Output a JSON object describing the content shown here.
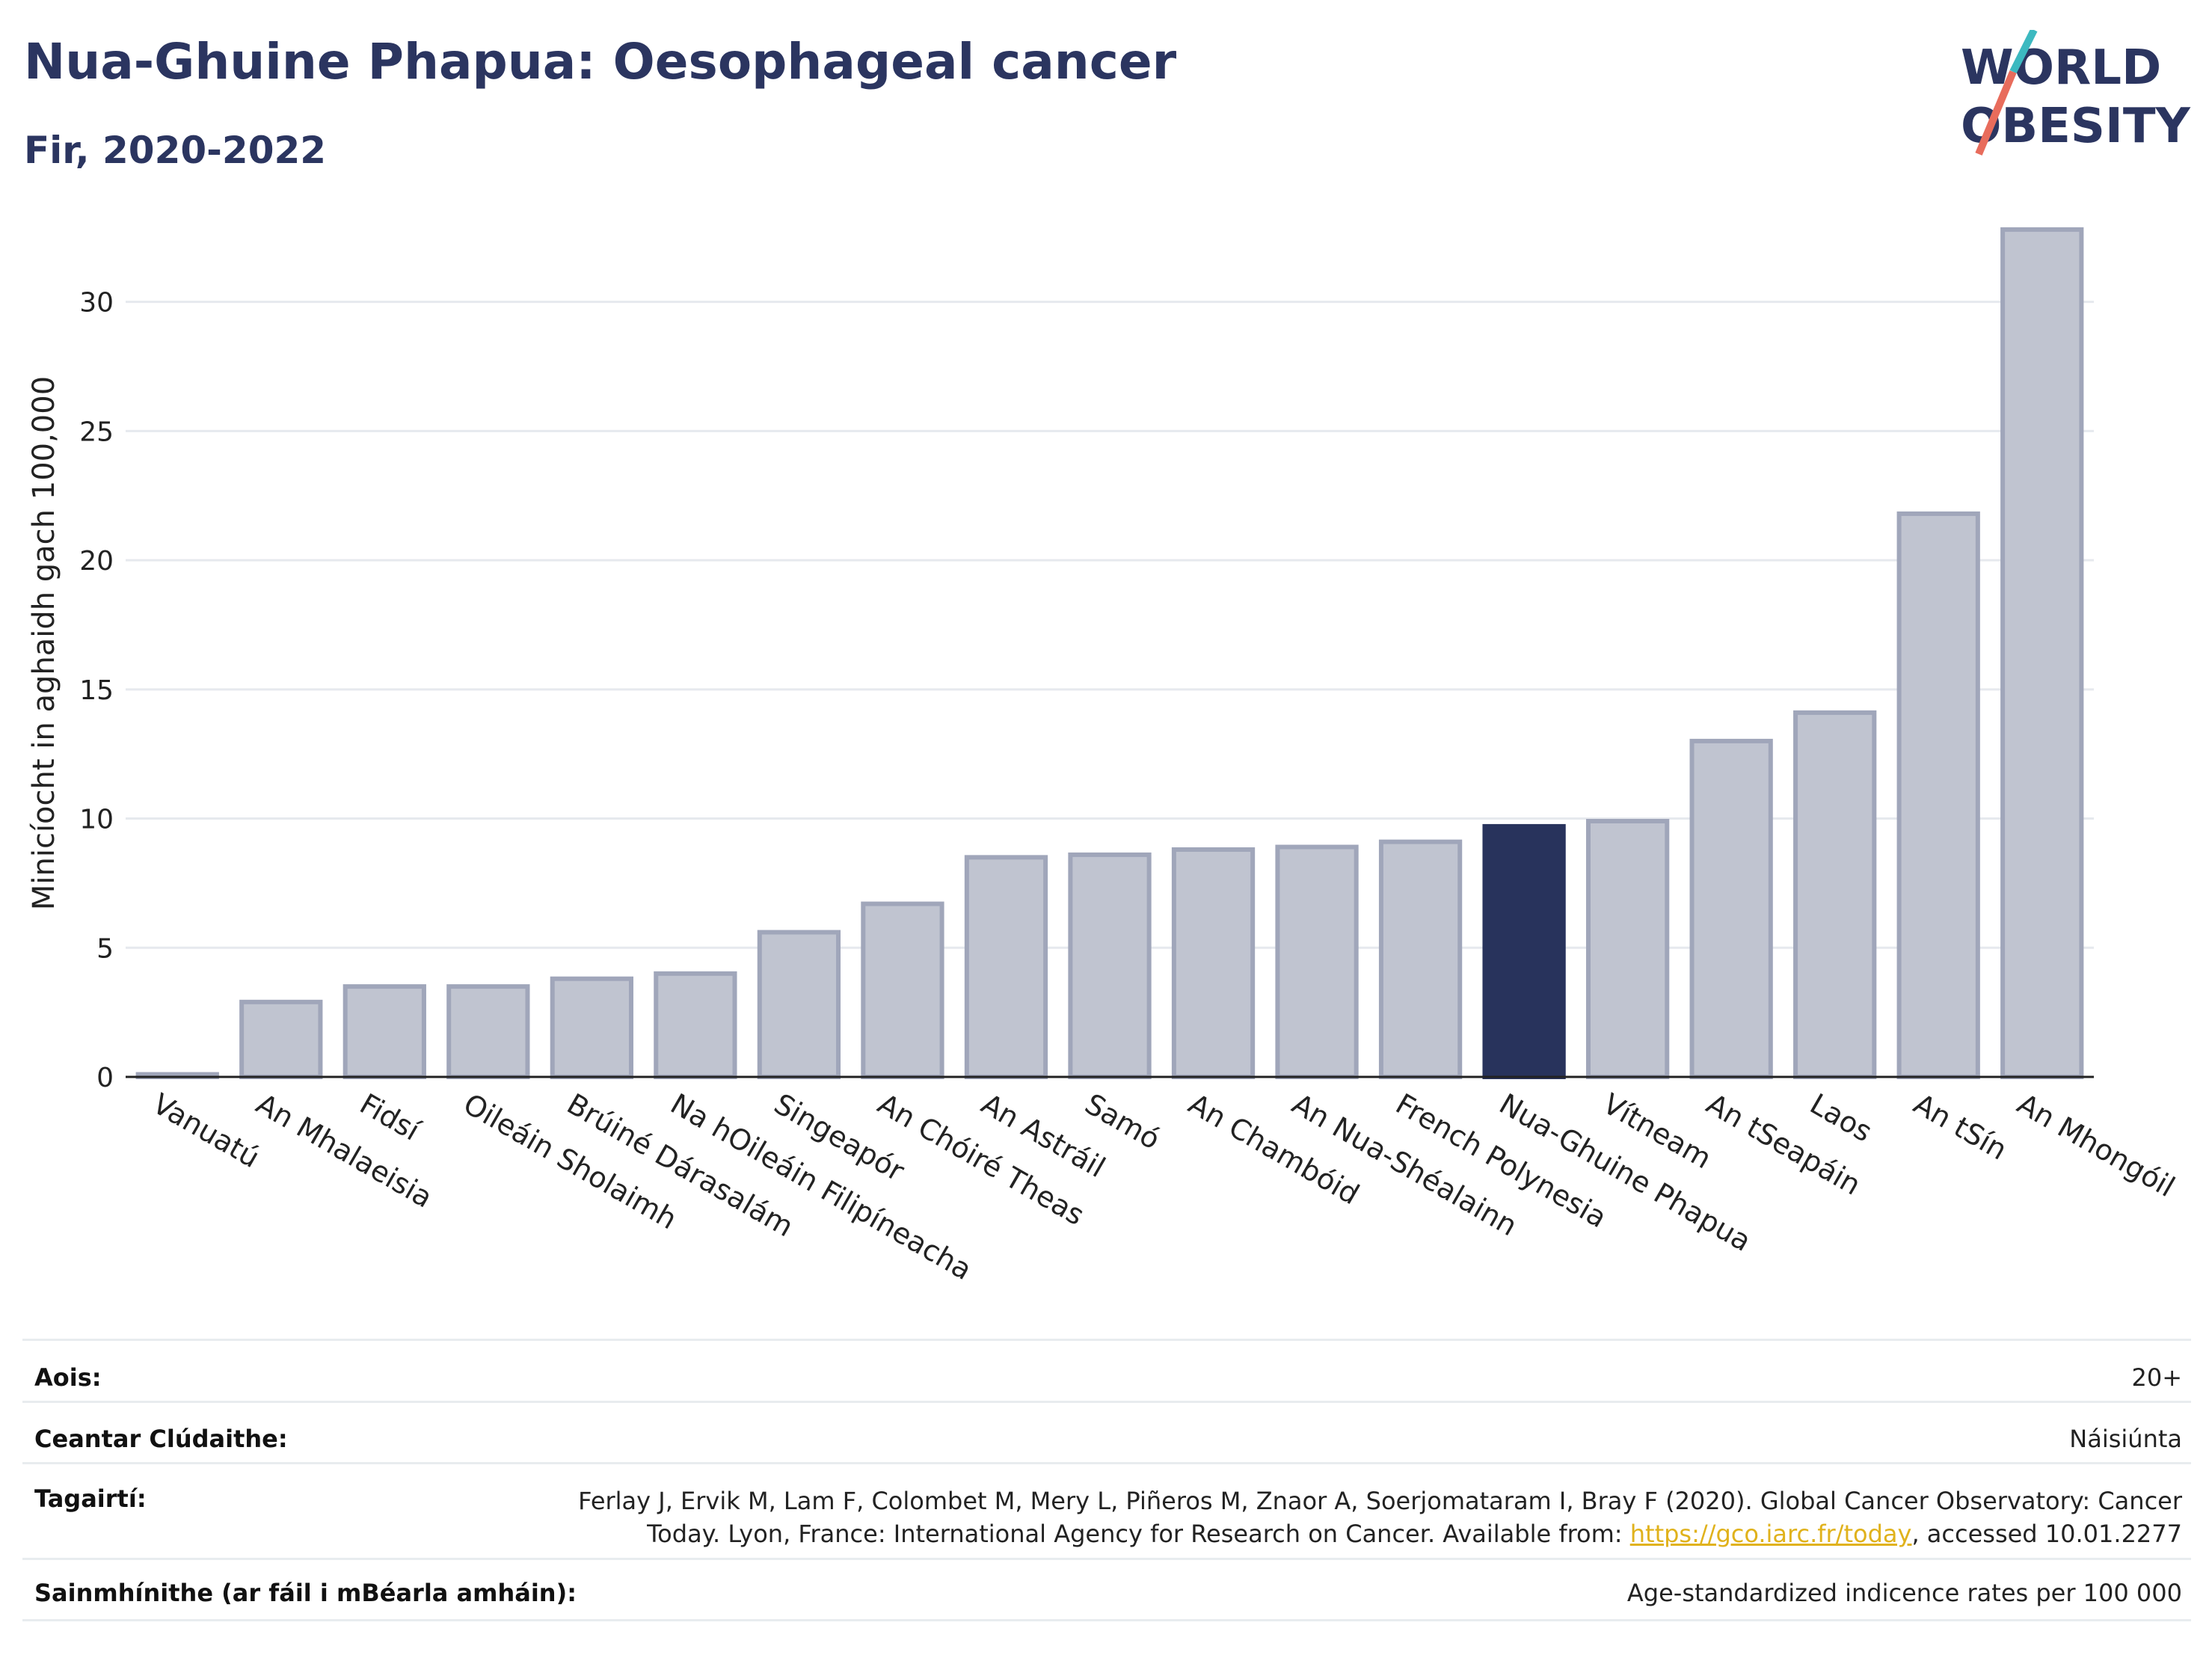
{
  "header": {
    "title": "Nua-Ghuine Phapua: Oesophageal cancer",
    "subtitle": "Fir, 2020-2022",
    "logo_line1": "WORLD",
    "logo_line2": "OBESITY"
  },
  "colors": {
    "highlight": "#28335c",
    "bar": "#c0c4d0",
    "bar_border": "#a0a6ba",
    "title": "#2b3560",
    "logo_teal": "#3cb9c0",
    "logo_coral": "#e86c5c",
    "link": "#e0b21c"
  },
  "chart_data": {
    "type": "bar",
    "ylabel": "Minicíocht in aghaidh gach 100,000",
    "ylim": [
      0,
      33
    ],
    "yticks": [
      0,
      5,
      10,
      15,
      20,
      25,
      30
    ],
    "grid": true,
    "highlight": "Nua-Ghuine Phapua",
    "categories": [
      "Vanuatú",
      "An Mhalaeisia",
      "Fidsí",
      "Oileáin Sholaimh",
      "Brúiné Dárasalám",
      "Na hOileáin Filipíneacha",
      "Singeapór",
      "An Chóiré Theas",
      "An Astráil",
      "Samó",
      "An Chambóid",
      "An Nua-Shéalainn",
      "French Polynesia",
      "Nua-Ghuine Phapua",
      "Vítneam",
      "An tSeapáin",
      "Laos",
      "An tSín",
      "An Mhongóil"
    ],
    "values": [
      0.1,
      2.9,
      3.5,
      3.5,
      3.8,
      4.0,
      5.6,
      6.7,
      8.5,
      8.6,
      8.8,
      8.9,
      9.1,
      9.7,
      9.9,
      13.0,
      14.1,
      21.8,
      32.8
    ]
  },
  "meta": {
    "rows": [
      {
        "key": "Aois:",
        "value": "20+"
      },
      {
        "key": "Ceantar Clúdaithe:",
        "value": "Náisiúnta"
      },
      {
        "key": "Tagairtí:",
        "value_line1": "Ferlay J, Ervik M, Lam F, Colombet M, Mery L, Piñeros M, Znaor A, Soerjomataram I, Bray F (2020). Global Cancer Observatory: Cancer",
        "value_line2_pre": "Today. Lyon, France: International Agency for Research on Cancer. Available from: ",
        "link": "https://gco.iarc.fr/today",
        "value_line2_post": ", accessed 10.01.2277"
      },
      {
        "key": "Sainmhínithe (ar fáil i mBéarla amháin):",
        "value": "Age-standardized indicence rates per 100 000"
      }
    ]
  }
}
